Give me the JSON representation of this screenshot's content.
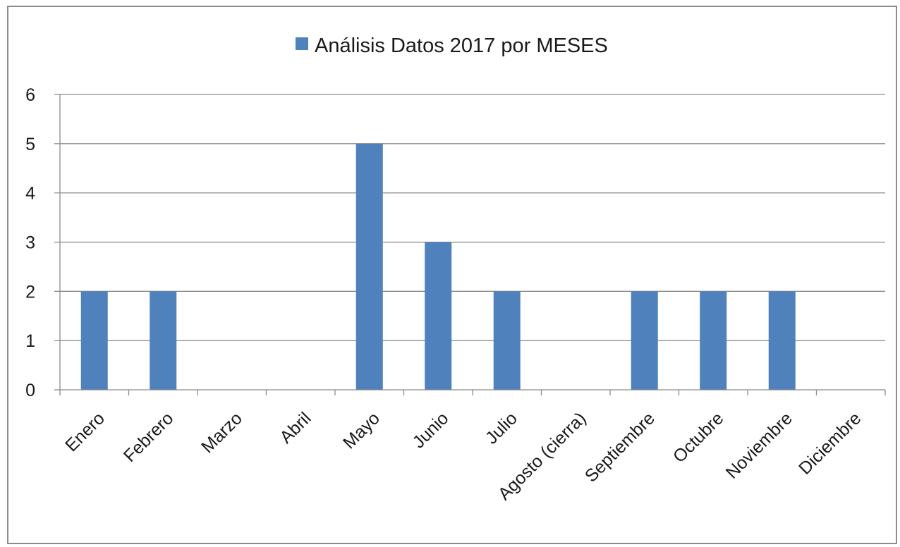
{
  "chart_data": {
    "type": "bar",
    "categories": [
      "Enero",
      "Febrero",
      "Marzo",
      "Abril",
      "Mayo",
      "Junio",
      "Julio",
      "Agosto (cierra)",
      "Septiembre",
      "Octubre",
      "Noviembre",
      "Diciembre"
    ],
    "series": [
      {
        "name": "Análisis Datos 2017 por MESES",
        "values": [
          2,
          2,
          0,
          0,
          5,
          3,
          2,
          0,
          2,
          2,
          2,
          0
        ],
        "color": "#4f81bd"
      }
    ],
    "yticks": [
      "0",
      "1",
      "2",
      "3",
      "4",
      "5",
      "6"
    ],
    "ylim": [
      0,
      6
    ],
    "grid": true,
    "legend_position": "top-center"
  }
}
